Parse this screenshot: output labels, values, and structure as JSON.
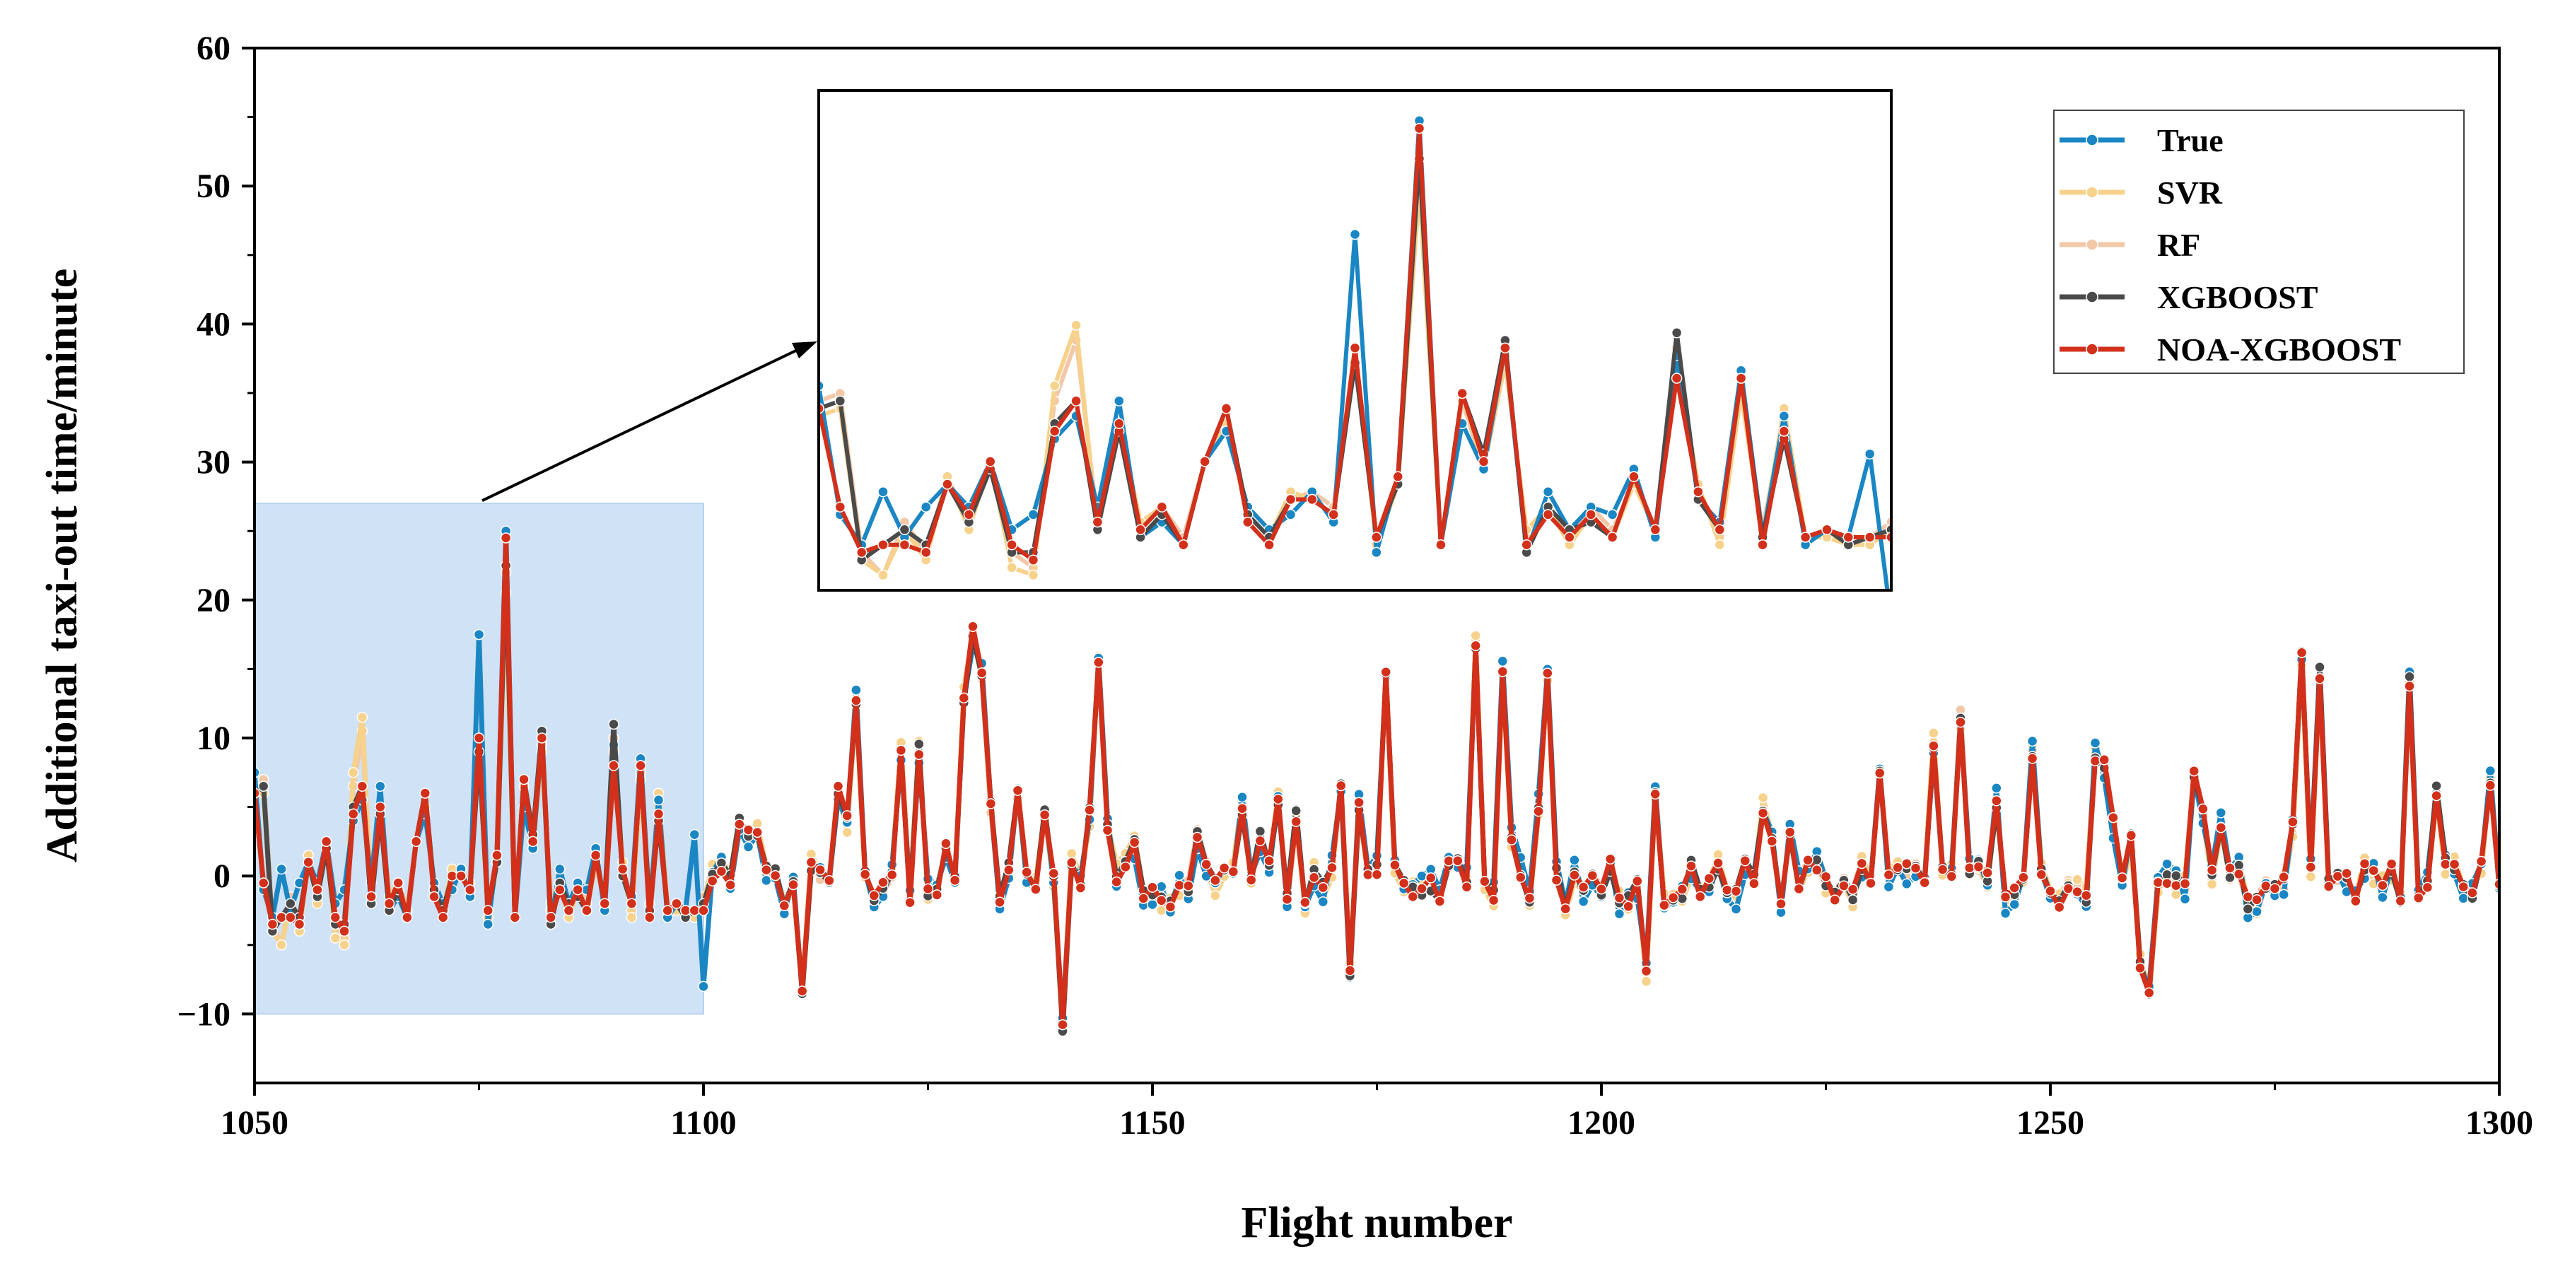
{
  "chart_data": {
    "type": "line",
    "title": "",
    "xlabel": "Flight number",
    "ylabel": "Additional taxi-out time/minute",
    "xlim": [
      1050,
      1300
    ],
    "ylim": [
      -15,
      60
    ],
    "xticks": [
      1050,
      1100,
      1150,
      1200,
      1250,
      1300
    ],
    "yticks": [
      -10,
      0,
      10,
      20,
      30,
      40,
      50,
      60
    ],
    "xtick_labels": [
      "1050",
      "1100",
      "1150",
      "1200",
      "1250",
      "1300"
    ],
    "ytick_labels": [
      "−10",
      "0",
      "10",
      "20",
      "30",
      "40",
      "50",
      "60"
    ],
    "legend_position": "top-right",
    "highlight_region": {
      "x": [
        1050,
        1100
      ],
      "y": [
        -10,
        27
      ]
    },
    "zoom_inset": {
      "x_range": [
        1050,
        1100
      ],
      "y_range": [
        -6,
        27
      ],
      "location": "upper-center"
    },
    "x_start": 1050,
    "series": [
      {
        "name": "True",
        "color": "#1a86c3",
        "values": [
          7.5,
          -1.0,
          -3.0,
          0.5,
          -2.5,
          -0.5,
          1.0,
          -0.5,
          2.5,
          -2.0,
          -1.0,
          4.0,
          5.5,
          -0.5,
          6.5,
          -2.5,
          -1.5,
          -3.0,
          2.5,
          4.5,
          -0.5,
          -2.0,
          -1.0,
          0.5,
          -1.5,
          17.5,
          -3.5,
          1.5,
          25.0,
          -3.0,
          5.0,
          2.0,
          10.0,
          -3.5,
          0.5,
          -2.0,
          -0.5,
          -1.0,
          2.0,
          -2.5,
          9.5,
          0.0,
          -1.5,
          8.5,
          -2.5,
          5.5,
          -3.0,
          -2.0,
          -2.5,
          3.0,
          -8.0
        ]
      },
      {
        "name": "SVR",
        "color": "#f7d28c",
        "values": [
          5.5,
          6.0,
          -4.0,
          -5.0,
          -2.0,
          -4.0,
          1.5,
          -2.0,
          2.5,
          -4.5,
          -5.0,
          7.5,
          11.5,
          -2.0,
          5.0,
          -1.5,
          -0.5,
          -3.0,
          2.5,
          5.0,
          -1.0,
          -2.5,
          0.5,
          0.0,
          -1.0,
          10.0,
          -3.0,
          1.0,
          20.5,
          -3.0,
          7.0,
          2.0,
          9.0,
          -2.0,
          -0.5,
          -3.0,
          -1.0,
          -2.5,
          1.0,
          -2.0,
          9.0,
          1.0,
          -3.0,
          7.0,
          -2.5,
          6.0,
          -2.5,
          -2.5,
          -3.0,
          -3.0,
          -2.0
        ]
      },
      {
        "name": "RF",
        "color": "#f2c8a8",
        "values": [
          6.5,
          7.0,
          -3.5,
          -5.0,
          -1.5,
          -3.5,
          1.5,
          -1.5,
          2.5,
          -3.5,
          -4.5,
          6.5,
          10.5,
          -1.5,
          5.0,
          -1.5,
          -0.5,
          -2.5,
          2.5,
          5.0,
          -1.0,
          -2.5,
          0.0,
          0.5,
          -0.5,
          10.0,
          -3.0,
          1.0,
          22.0,
          -3.0,
          6.5,
          2.0,
          9.5,
          -2.5,
          -0.5,
          -2.5,
          -0.5,
          -2.0,
          1.0,
          -2.0,
          10.0,
          0.5,
          -2.5,
          7.5,
          -2.0,
          5.5,
          -2.5,
          -2.0,
          -2.5,
          -2.5,
          -1.5
        ]
      },
      {
        "name": "XGBOOST",
        "color": "#4a4a4a",
        "values": [
          6.0,
          6.5,
          -4.0,
          -3.0,
          -2.0,
          -3.0,
          1.0,
          -1.5,
          2.0,
          -3.5,
          -3.5,
          5.0,
          6.5,
          -2.0,
          4.5,
          -2.5,
          -1.0,
          -3.0,
          2.5,
          6.0,
          -1.0,
          -2.5,
          0.0,
          0.0,
          -1.0,
          9.0,
          -2.5,
          1.0,
          22.5,
          -3.0,
          7.0,
          3.0,
          10.5,
          -3.5,
          -0.5,
          -2.0,
          -1.5,
          -2.5,
          1.5,
          -2.0,
          11.0,
          0.0,
          -2.0,
          8.0,
          -2.5,
          4.0,
          -2.5,
          -2.0,
          -3.0,
          -2.5,
          -2.0
        ]
      },
      {
        "name": "NOA-XGBOOST",
        "color": "#d2301b",
        "values": [
          6.0,
          -0.5,
          -3.5,
          -3.0,
          -3.0,
          -3.5,
          1.0,
          -1.0,
          2.5,
          -3.0,
          -4.0,
          4.5,
          6.5,
          -1.5,
          5.0,
          -2.0,
          -0.5,
          -3.0,
          2.5,
          6.0,
          -1.5,
          -3.0,
          0.0,
          0.0,
          -1.0,
          10.0,
          -2.5,
          1.5,
          24.5,
          -3.0,
          7.0,
          2.5,
          10.0,
          -3.0,
          -1.0,
          -2.5,
          -1.0,
          -2.5,
          1.5,
          -2.0,
          8.0,
          0.5,
          -2.0,
          8.0,
          -3.0,
          4.5,
          -2.5,
          -2.0,
          -2.5,
          -2.5,
          -2.5
        ]
      }
    ]
  }
}
